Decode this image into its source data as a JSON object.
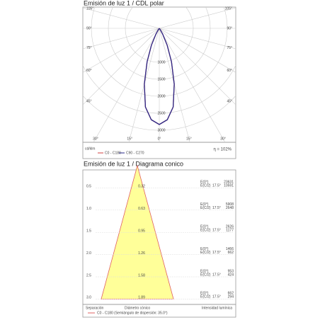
{
  "chart_data": [
    {
      "type": "polar",
      "title": "Emisión de luz 1 / CDL polar",
      "unit_label": "cd/klm",
      "efficiency_label": "η = 102%",
      "angles": [
        -40,
        -35,
        -30,
        -25,
        -20,
        -15,
        -10,
        -5,
        0,
        5,
        10,
        15,
        20,
        25,
        30,
        35,
        40
      ],
      "series": [
        {
          "name": "C0 - C180",
          "color": "#d04040",
          "values": [
            0,
            50,
            200,
            550,
            1050,
            1700,
            2350,
            2700,
            2830,
            2700,
            2350,
            1700,
            1050,
            550,
            200,
            50,
            0
          ]
        },
        {
          "name": "C90 - C270",
          "color": "#2a2a8a",
          "values": [
            0,
            50,
            200,
            550,
            1050,
            1700,
            2350,
            2700,
            2830,
            2700,
            2350,
            1700,
            1050,
            550,
            200,
            50,
            0
          ]
        }
      ],
      "rlim": [
        0,
        3000
      ],
      "rticks": [
        1000,
        1500,
        2000,
        2500,
        3000
      ],
      "angle_ticks": [
        {
          "value": -105,
          "label": "105°"
        },
        {
          "value": -90,
          "label": "90°"
        },
        {
          "value": -75,
          "label": "75°"
        },
        {
          "value": -60,
          "label": "60°"
        },
        {
          "value": -45,
          "label": "45°"
        },
        {
          "value": -30,
          "label": "30°"
        },
        {
          "value": -15,
          "label": "15°"
        },
        {
          "value": 0,
          "label": "0°"
        },
        {
          "value": 15,
          "label": "15°"
        },
        {
          "value": 30,
          "label": "30°"
        },
        {
          "value": 45,
          "label": "45°"
        },
        {
          "value": 60,
          "label": "60°"
        },
        {
          "value": 75,
          "label": "75°"
        },
        {
          "value": 90,
          "label": "90°"
        },
        {
          "value": 105,
          "label": "105°"
        }
      ],
      "grid": true
    },
    {
      "type": "cone",
      "title": "Emisión de luz 1 / Diagrama conico",
      "distances": [
        0.5,
        {
          "value": 1,
          "label": "1.0"
        },
        1.5,
        {
          "value": 2,
          "label": "2.0"
        },
        2.5,
        {
          "value": 3,
          "label": "3.0"
        }
      ],
      "diameters": [
        0.32,
        0.63,
        0.95,
        1.26,
        1.58,
        1.89
      ],
      "e0": [
        23631,
        5908,
        2626,
        1466,
        953,
        662
      ],
      "ec2": [
        10591,
        2648,
        1177,
        662,
        424,
        294
      ],
      "e0_label": "E(0°)",
      "ec2_label": "E(C/2)",
      "half_angle_label": "17.5°",
      "separation_label": "Separación",
      "diameter_label": "Diámetro cónico",
      "intensity_label": "Intensidad lumínica",
      "series": [
        {
          "name": "C0 - C180 (Semiángulo de dispersión: 35.0°)",
          "color": "#e06060"
        }
      ],
      "fill": "#ffff99"
    }
  ]
}
